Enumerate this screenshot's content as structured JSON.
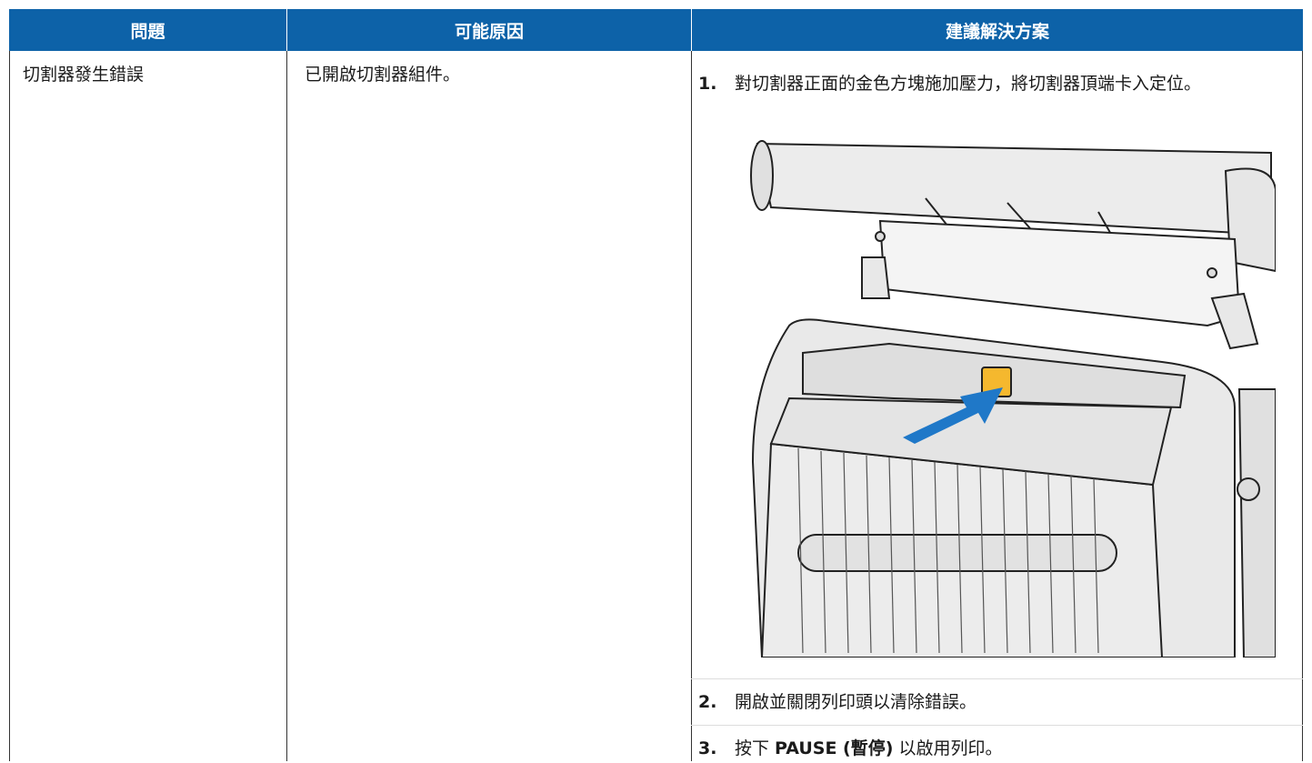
{
  "table": {
    "headers": [
      "問題",
      "可能原因",
      "建議解決方案"
    ],
    "rows": [
      {
        "problem": "切割器發生錯誤",
        "cause": "已開啟切割器組件。",
        "solution": [
          {
            "number": "1.",
            "text": "對切割器正面的金色方塊施加壓力，將切割器頂端卡入定位。"
          },
          {
            "number": "2.",
            "text": "開啟並關閉列印頭以清除錯誤。"
          },
          {
            "number": "3.",
            "parts": [
              "按下 ",
              "PAUSE (暫停)",
              " 以啟用列印。"
            ]
          }
        ]
      }
    ]
  }
}
